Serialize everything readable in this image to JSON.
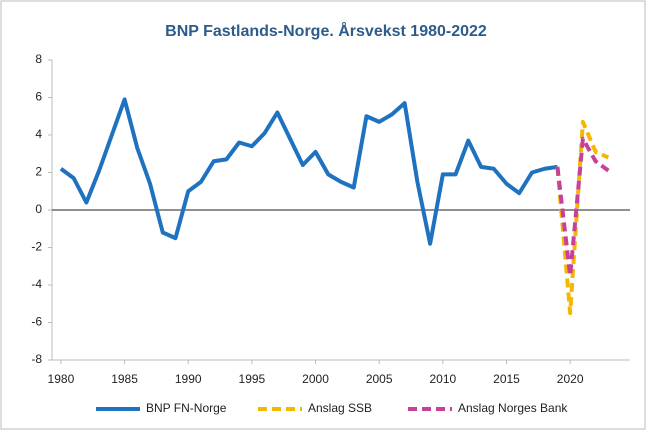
{
  "chart_data": {
    "type": "line",
    "title": "BNP Fastlands-Norge. Årsvekst 1980-2022",
    "x": [
      1980,
      1981,
      1982,
      1983,
      1984,
      1985,
      1986,
      1987,
      1988,
      1989,
      1990,
      1991,
      1992,
      1993,
      1994,
      1995,
      1996,
      1997,
      1998,
      1999,
      2000,
      2001,
      2002,
      2003,
      2004,
      2005,
      2006,
      2007,
      2008,
      2009,
      2010,
      2011,
      2012,
      2013,
      2014,
      2015,
      2016,
      2017,
      2018,
      2019,
      2020,
      2021,
      2022,
      2023
    ],
    "series": [
      {
        "name": "BNP FN-Norge",
        "color": "#1f72c0",
        "dashed": false,
        "values": [
          2.2,
          1.7,
          0.4,
          2.1,
          4.0,
          5.9,
          3.3,
          1.4,
          -1.2,
          -1.5,
          1.0,
          1.5,
          2.6,
          2.7,
          3.6,
          3.4,
          4.1,
          5.2,
          3.8,
          2.4,
          3.1,
          1.9,
          1.5,
          1.2,
          5.0,
          4.7,
          5.1,
          5.7,
          1.5,
          -1.8,
          1.9,
          1.9,
          3.7,
          2.3,
          2.2,
          1.4,
          0.9,
          2.0,
          2.2,
          2.3,
          null,
          null,
          null,
          null
        ]
      },
      {
        "name": "Anslag SSB",
        "color": "#f5b800",
        "dashed": true,
        "values": [
          null,
          null,
          null,
          null,
          null,
          null,
          null,
          null,
          null,
          null,
          null,
          null,
          null,
          null,
          null,
          null,
          null,
          null,
          null,
          null,
          null,
          null,
          null,
          null,
          null,
          null,
          null,
          null,
          null,
          null,
          null,
          null,
          null,
          null,
          null,
          null,
          null,
          null,
          null,
          2.3,
          -5.5,
          4.7,
          3.1,
          2.8
        ]
      },
      {
        "name": "Anslag Norges Bank",
        "color": "#c8409a",
        "dashed": true,
        "values": [
          null,
          null,
          null,
          null,
          null,
          null,
          null,
          null,
          null,
          null,
          null,
          null,
          null,
          null,
          null,
          null,
          null,
          null,
          null,
          null,
          null,
          null,
          null,
          null,
          null,
          null,
          null,
          null,
          null,
          null,
          null,
          null,
          null,
          null,
          null,
          null,
          null,
          null,
          null,
          2.3,
          -3.5,
          3.8,
          2.6,
          2.1
        ]
      }
    ],
    "xlim": [
      1979.3,
      2024.7
    ],
    "xticks": [
      1980,
      1985,
      1990,
      1995,
      2000,
      2005,
      2010,
      2015,
      2020
    ],
    "ylim": [
      -8,
      8
    ],
    "yticks": [
      -8,
      -6,
      -4,
      -2,
      0,
      2,
      4,
      6,
      8
    ],
    "grid": false,
    "legend": "bottom"
  }
}
